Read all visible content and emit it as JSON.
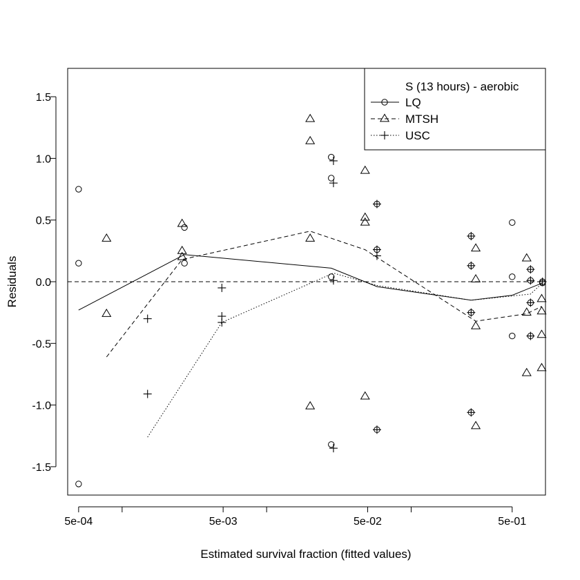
{
  "chart_data": {
    "type": "scatter",
    "title": "",
    "xlabel": "Estimated survival fraction (fitted values)",
    "ylabel": "Residuals",
    "x_scale": "log",
    "xlim": [
      0.00042,
      0.85
    ],
    "ylim": [
      -1.73,
      1.73
    ],
    "x_tick_values": [
      0.0005,
      0.005,
      0.05,
      0.5
    ],
    "x_tick_labels": [
      "5e-04",
      "5e-03",
      "5e-02",
      "5e-01"
    ],
    "x_minor_ticks": [
      0.001,
      0.01,
      0.1
    ],
    "y_tick_values": [
      -1.5,
      -1.0,
      -0.5,
      0.0,
      0.5,
      1.0,
      1.5
    ],
    "y_tick_labels": [
      "-1.5",
      "-1.0",
      "-0.5",
      "0.0",
      "0.5",
      "1.0",
      "1.5"
    ],
    "reference_line": {
      "y": 0.0,
      "style": "dashed"
    },
    "legend": {
      "placement": "top-right",
      "title": "S (13 hours) - aerobic",
      "entries": [
        {
          "label": "LQ",
          "marker": "circle",
          "line": "solid"
        },
        {
          "label": "MTSH",
          "marker": "triangle",
          "line": "dashed"
        },
        {
          "label": "USC",
          "marker": "plus",
          "line": "dotted"
        }
      ]
    },
    "series": [
      {
        "name": "LQ",
        "marker": "circle",
        "line": "solid",
        "points": [
          {
            "x": 0.0005,
            "y": 0.75
          },
          {
            "x": 0.0005,
            "y": 0.15
          },
          {
            "x": 0.0005,
            "y": -1.64
          },
          {
            "x": 0.0027,
            "y": 0.44
          },
          {
            "x": 0.0027,
            "y": 0.15
          },
          {
            "x": 0.028,
            "y": 1.01
          },
          {
            "x": 0.028,
            "y": 0.84
          },
          {
            "x": 0.028,
            "y": 0.04
          },
          {
            "x": 0.028,
            "y": -1.32
          },
          {
            "x": 0.058,
            "y": 0.63
          },
          {
            "x": 0.058,
            "y": 0.26
          },
          {
            "x": 0.058,
            "y": -1.2
          },
          {
            "x": 0.26,
            "y": 0.37
          },
          {
            "x": 0.26,
            "y": 0.13
          },
          {
            "x": 0.26,
            "y": -0.25
          },
          {
            "x": 0.26,
            "y": -1.06
          },
          {
            "x": 0.5,
            "y": 0.48
          },
          {
            "x": 0.5,
            "y": 0.04
          },
          {
            "x": 0.5,
            "y": -0.44
          },
          {
            "x": 0.67,
            "y": 0.1
          },
          {
            "x": 0.67,
            "y": 0.01
          },
          {
            "x": 0.67,
            "y": -0.17
          },
          {
            "x": 0.67,
            "y": -0.44
          },
          {
            "x": 0.81,
            "y": 0.0
          },
          {
            "x": 0.81,
            "y": -0.01
          }
        ],
        "curve": [
          {
            "x": 0.0005,
            "y": -0.23
          },
          {
            "x": 0.0027,
            "y": 0.22
          },
          {
            "x": 0.028,
            "y": 0.11
          },
          {
            "x": 0.058,
            "y": -0.04
          },
          {
            "x": 0.26,
            "y": -0.15
          },
          {
            "x": 0.5,
            "y": -0.11
          },
          {
            "x": 0.81,
            "y": -0.01
          }
        ]
      },
      {
        "name": "MTSH",
        "marker": "triangle",
        "line": "dashed",
        "points": [
          {
            "x": 0.00078,
            "y": 0.35
          },
          {
            "x": 0.00078,
            "y": -0.26
          },
          {
            "x": 0.0026,
            "y": 0.47
          },
          {
            "x": 0.0026,
            "y": 0.25
          },
          {
            "x": 0.0026,
            "y": 0.2
          },
          {
            "x": 0.02,
            "y": 1.32
          },
          {
            "x": 0.02,
            "y": 1.14
          },
          {
            "x": 0.02,
            "y": 0.35
          },
          {
            "x": 0.02,
            "y": -1.01
          },
          {
            "x": 0.048,
            "y": 0.9
          },
          {
            "x": 0.048,
            "y": 0.52
          },
          {
            "x": 0.048,
            "y": 0.48
          },
          {
            "x": 0.048,
            "y": -0.93
          },
          {
            "x": 0.28,
            "y": 0.27
          },
          {
            "x": 0.28,
            "y": 0.02
          },
          {
            "x": 0.28,
            "y": -0.36
          },
          {
            "x": 0.28,
            "y": -1.17
          },
          {
            "x": 0.63,
            "y": 0.19
          },
          {
            "x": 0.63,
            "y": -0.25
          },
          {
            "x": 0.63,
            "y": -0.74
          },
          {
            "x": 0.8,
            "y": -0.14
          },
          {
            "x": 0.8,
            "y": -0.24
          },
          {
            "x": 0.8,
            "y": -0.43
          },
          {
            "x": 0.8,
            "y": -0.7
          }
        ],
        "curve": [
          {
            "x": 0.00078,
            "y": -0.61
          },
          {
            "x": 0.0026,
            "y": 0.18
          },
          {
            "x": 0.02,
            "y": 0.41
          },
          {
            "x": 0.048,
            "y": 0.26
          },
          {
            "x": 0.28,
            "y": -0.32
          },
          {
            "x": 0.63,
            "y": -0.26
          },
          {
            "x": 0.8,
            "y": -0.2
          }
        ]
      },
      {
        "name": "USC",
        "marker": "plus",
        "line": "dotted",
        "points": [
          {
            "x": 0.0015,
            "y": -0.3
          },
          {
            "x": 0.0015,
            "y": -0.91
          },
          {
            "x": 0.0049,
            "y": -0.05
          },
          {
            "x": 0.0049,
            "y": -0.28
          },
          {
            "x": 0.0049,
            "y": -0.33
          },
          {
            "x": 0.029,
            "y": 0.98
          },
          {
            "x": 0.029,
            "y": 0.8
          },
          {
            "x": 0.029,
            "y": 0.01
          },
          {
            "x": 0.029,
            "y": -1.35
          },
          {
            "x": 0.058,
            "y": 0.63
          },
          {
            "x": 0.058,
            "y": 0.26
          },
          {
            "x": 0.058,
            "y": 0.21
          },
          {
            "x": 0.058,
            "y": -1.2
          },
          {
            "x": 0.26,
            "y": 0.37
          },
          {
            "x": 0.26,
            "y": 0.13
          },
          {
            "x": 0.26,
            "y": -0.25
          },
          {
            "x": 0.26,
            "y": -1.06
          },
          {
            "x": 0.67,
            "y": 0.1
          },
          {
            "x": 0.67,
            "y": 0.01
          },
          {
            "x": 0.67,
            "y": -0.17
          },
          {
            "x": 0.67,
            "y": -0.44
          },
          {
            "x": 0.81,
            "y": 0.0
          }
        ],
        "curve": [
          {
            "x": 0.0015,
            "y": -1.26
          },
          {
            "x": 0.0049,
            "y": -0.33
          },
          {
            "x": 0.029,
            "y": 0.07
          },
          {
            "x": 0.058,
            "y": -0.03
          },
          {
            "x": 0.26,
            "y": -0.15
          },
          {
            "x": 0.67,
            "y": -0.1
          },
          {
            "x": 0.81,
            "y": -0.01
          }
        ]
      }
    ]
  }
}
